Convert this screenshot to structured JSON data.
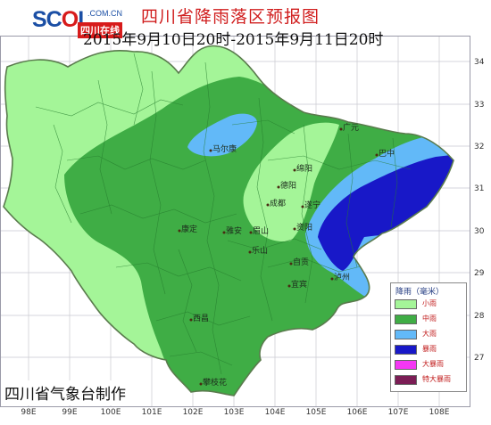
{
  "map": {
    "logo": {
      "main_prefix": "SC",
      "main_o": "O",
      "main_suffix": "L",
      "sub": ".COM.CN",
      "cn": "四川在线"
    },
    "title": "四川省降雨落区预报图",
    "subtitle": "2015年9月10日20时-2015年9月11日20时",
    "footer": "四川省气象台制作",
    "legend": {
      "title": "降雨（毫米）",
      "items": [
        {
          "label": "小雨",
          "color": "#a4f598"
        },
        {
          "label": "中雨",
          "color": "#3fad45"
        },
        {
          "label": "大雨",
          "color": "#62b9f8"
        },
        {
          "label": "暴雨",
          "color": "#1818c8"
        },
        {
          "label": "大暴雨",
          "color": "#f437f4"
        },
        {
          "label": "特大暴雨",
          "color": "#7b1d55"
        }
      ]
    },
    "lon_labels": [
      "98E",
      "99E",
      "100E",
      "101E",
      "102E",
      "103E",
      "104E",
      "105E",
      "106E",
      "107E",
      "108E"
    ],
    "lat_labels": [
      "34",
      "33",
      "32",
      "31",
      "30",
      "29",
      "28",
      "27"
    ],
    "places": [
      {
        "name": "马尔康"
      },
      {
        "name": "广元"
      },
      {
        "name": "巴中"
      },
      {
        "name": "绵阳"
      },
      {
        "name": "德阳"
      },
      {
        "name": "成都"
      },
      {
        "name": "雅安"
      },
      {
        "name": "眉山"
      },
      {
        "name": "遂宁"
      },
      {
        "name": "康定"
      },
      {
        "name": "乐山"
      },
      {
        "name": "资阳"
      },
      {
        "name": "自贡"
      },
      {
        "name": "泸州"
      },
      {
        "name": "宜宾"
      },
      {
        "name": "西昌"
      },
      {
        "name": "攀枝花"
      }
    ]
  }
}
